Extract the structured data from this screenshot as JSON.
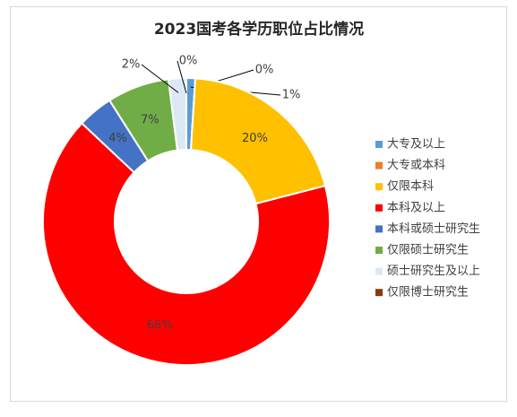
{
  "chart_data": {
    "type": "donut",
    "title": "2023国考各学历职位占比情况",
    "categories": [
      "大专及以上",
      "大专或本科",
      "仅限本科",
      "本科及以上",
      "本科或硕士研究生",
      "仅限硕士研究生",
      "硕士研究生及以上",
      "仅限博士研究生"
    ],
    "values": [
      1,
      0,
      20,
      66,
      4,
      7,
      2,
      0
    ],
    "value_labels": [
      "1%",
      "0%",
      "20%",
      "66%",
      "4%",
      "7%",
      "2%",
      "0%"
    ],
    "colors": [
      "#5b9bd5",
      "#ed7d31",
      "#ffc000",
      "#ff0000",
      "#4472c4",
      "#70ad47",
      "#dde8f5",
      "#843c0c"
    ],
    "legend": "right"
  }
}
